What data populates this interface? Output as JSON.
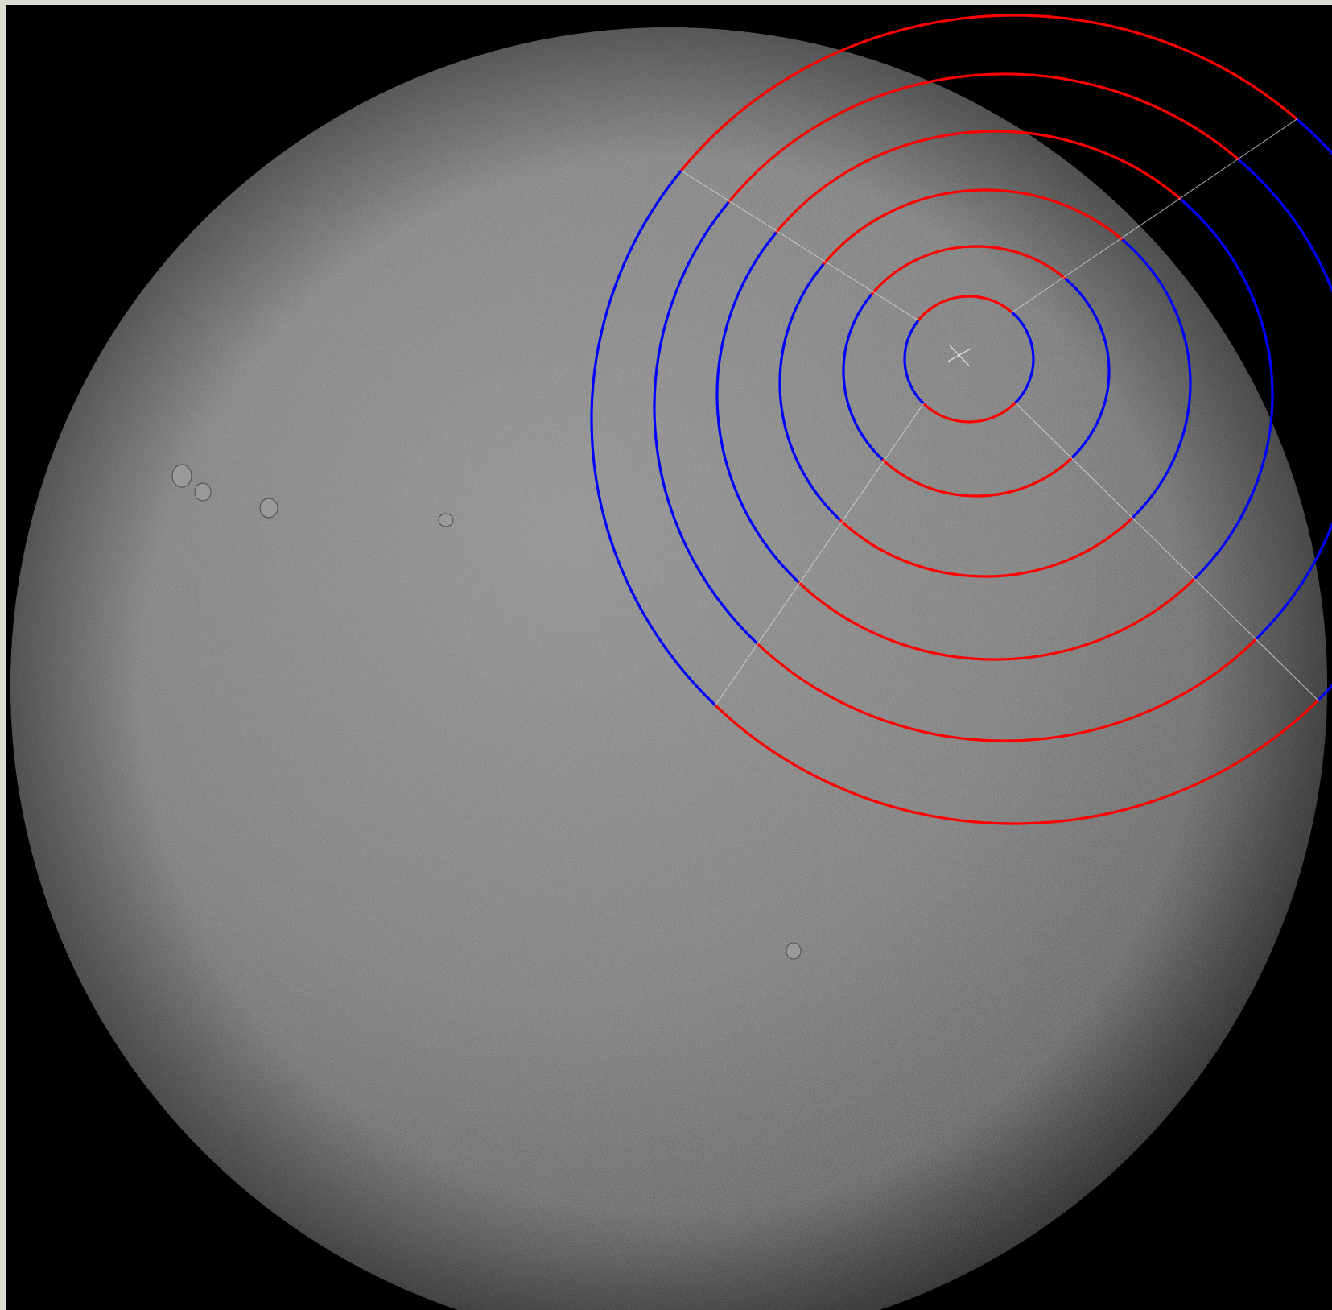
{
  "image": {
    "subject": "solar disk",
    "frame_color": "#dcdcd2",
    "background_color": "#000000",
    "disk_color_center": "#8e8e8e",
    "disk_color_edge": "#3a3a3a",
    "grid_line_color": "#d8d8d8"
  },
  "annuli": {
    "count": 6,
    "ring_colors": [
      "#ff0000",
      "#0000ff"
    ],
    "sectors_per_ring": 4
  }
}
